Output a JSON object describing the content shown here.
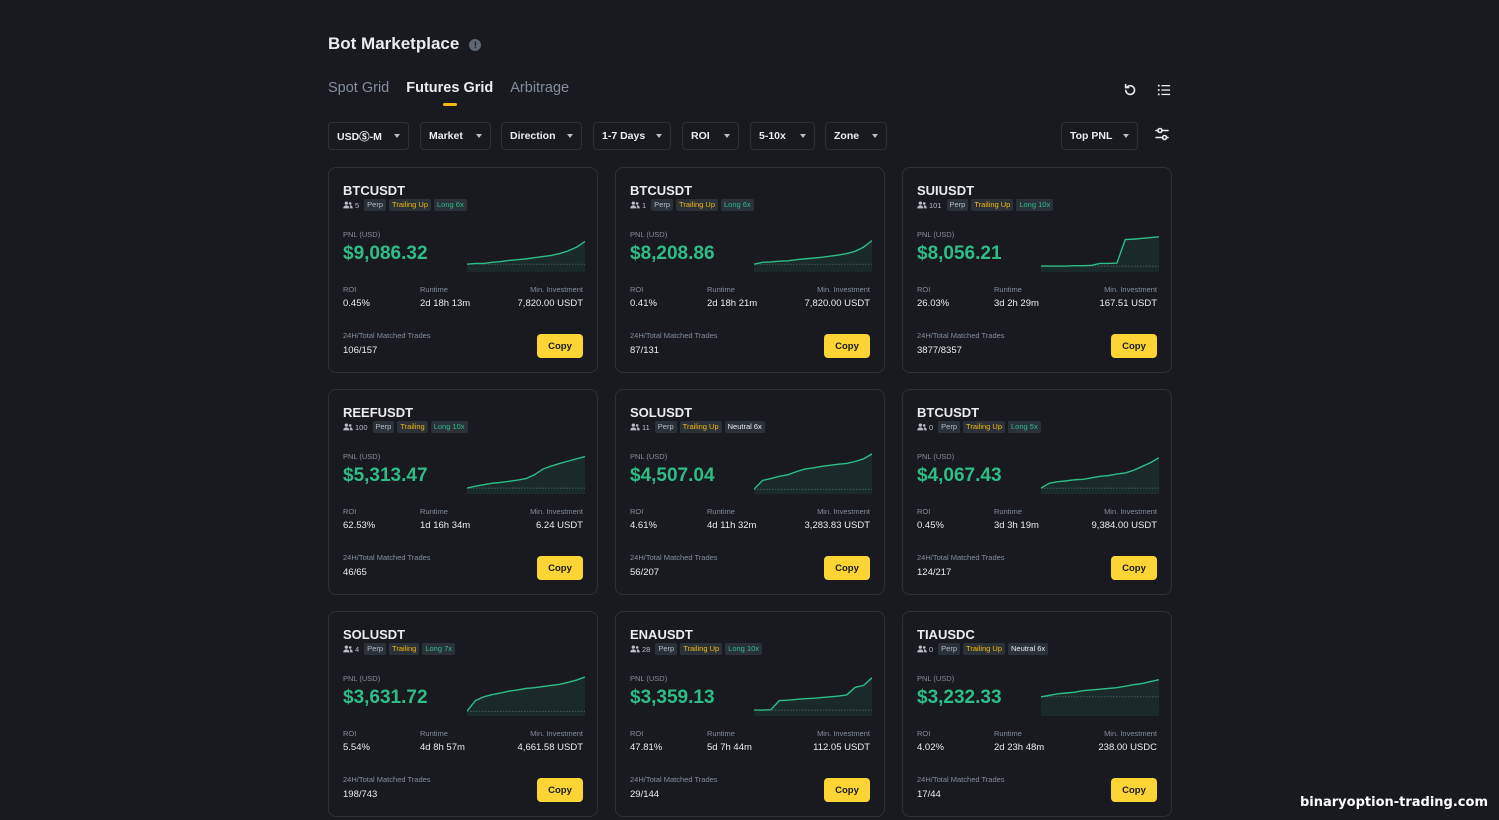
{
  "header": {
    "title": "Bot Marketplace",
    "info_icon": "info-icon"
  },
  "tabs": [
    {
      "label": "Spot Grid",
      "active": false
    },
    {
      "label": "Futures Grid",
      "active": true
    },
    {
      "label": "Arbitrage",
      "active": false
    }
  ],
  "toolbar": {
    "refresh_icon": "refresh-icon",
    "list_icon": "list-view-icon",
    "settings_icon": "sliders-icon"
  },
  "filters": [
    {
      "label": "USDⓈ-M"
    },
    {
      "label": "Market"
    },
    {
      "label": "Direction"
    },
    {
      "label": "1-7 Days"
    },
    {
      "label": "ROI"
    },
    {
      "label": "5-10x"
    },
    {
      "label": "Zone"
    }
  ],
  "sort": {
    "label": "Top PNL"
  },
  "labels": {
    "pnl": "PNL (USD)",
    "roi": "ROI",
    "runtime": "Runtime",
    "min_investment": "Min. Investment",
    "trades": "24H/Total Matched Trades",
    "copy": "Copy"
  },
  "colors": {
    "accent": "#fcd535",
    "positive": "#2ebd85",
    "background": "#181a20",
    "border": "#2b3139"
  },
  "cards": [
    {
      "symbol": "BTCUSDT",
      "users": "5",
      "type": "Perp",
      "mode": "Trailing Up",
      "direction": "Long 6x",
      "direction_kind": "long",
      "pnl": "$9,086.32",
      "roi": "0.45%",
      "runtime": "2d 18h 13m",
      "min_investment": "7,820.00 USDT",
      "trades": "106/157",
      "trend": [
        0.1,
        0.12,
        0.12,
        0.15,
        0.17,
        0.2,
        0.22,
        0.24,
        0.27,
        0.3,
        0.33,
        0.38,
        0.45,
        0.55,
        0.7
      ]
    },
    {
      "symbol": "BTCUSDT",
      "users": "1",
      "type": "Perp",
      "mode": "Trailing Up",
      "direction": "Long 6x",
      "direction_kind": "long",
      "pnl": "$8,208.86",
      "roi": "0.41%",
      "runtime": "2d 18h 21m",
      "min_investment": "7,820.00 USDT",
      "trades": "87/131",
      "trend": [
        0.1,
        0.15,
        0.16,
        0.18,
        0.19,
        0.22,
        0.24,
        0.26,
        0.28,
        0.31,
        0.34,
        0.38,
        0.44,
        0.55,
        0.72
      ]
    },
    {
      "symbol": "SUIUSDT",
      "users": "101",
      "type": "Perp",
      "mode": "Trailing Up",
      "direction": "Long 10x",
      "direction_kind": "long",
      "pnl": "$8,056.21",
      "roi": "26.03%",
      "runtime": "3d 2h 29m",
      "min_investment": "167.51 USDT",
      "trades": "3877/8357",
      "trend": [
        0.05,
        0.05,
        0.05,
        0.05,
        0.06,
        0.06,
        0.07,
        0.12,
        0.12,
        0.13,
        0.75,
        0.76,
        0.78,
        0.8,
        0.82
      ]
    },
    {
      "symbol": "REEFUSDT",
      "users": "100",
      "type": "Perp",
      "mode": "Trailing",
      "direction": "Long 10x",
      "direction_kind": "long",
      "pnl": "$5,313.47",
      "roi": "62.53%",
      "runtime": "1d 16h 34m",
      "min_investment": "6.24 USDT",
      "trades": "46/65",
      "trend": [
        0.05,
        0.1,
        0.14,
        0.18,
        0.2,
        0.23,
        0.26,
        0.3,
        0.4,
        0.55,
        0.63,
        0.7,
        0.76,
        0.82,
        0.88
      ]
    },
    {
      "symbol": "SOLUSDT",
      "users": "11",
      "type": "Perp",
      "mode": "Trailing Up",
      "direction": "Neutral 6x",
      "direction_kind": "neutral",
      "pnl": "$4,507.04",
      "roi": "4.61%",
      "runtime": "4d 11h 32m",
      "min_investment": "3,283.83 USDT",
      "trades": "56/207",
      "trend": [
        0.02,
        0.25,
        0.3,
        0.36,
        0.4,
        0.48,
        0.55,
        0.58,
        0.62,
        0.65,
        0.68,
        0.7,
        0.75,
        0.82,
        0.95
      ]
    },
    {
      "symbol": "BTCUSDT",
      "users": "0",
      "type": "Perp",
      "mode": "Trailing Up",
      "direction": "Long 5x",
      "direction_kind": "long",
      "pnl": "$4,067.43",
      "roi": "0.45%",
      "runtime": "3d 3h 19m",
      "min_investment": "9,384.00 USDT",
      "trades": "124/217",
      "trend": [
        0.05,
        0.18,
        0.22,
        0.24,
        0.27,
        0.28,
        0.32,
        0.36,
        0.38,
        0.42,
        0.45,
        0.52,
        0.62,
        0.72,
        0.85
      ]
    },
    {
      "symbol": "SOLUSDT",
      "users": "4",
      "type": "Perp",
      "mode": "Trailing",
      "direction": "Long 7x",
      "direction_kind": "long",
      "pnl": "$3,631.72",
      "roi": "5.54%",
      "runtime": "4d 8h 57m",
      "min_investment": "4,661.58 USDT",
      "trades": "198/743",
      "trend": [
        0.02,
        0.3,
        0.4,
        0.46,
        0.5,
        0.55,
        0.58,
        0.62,
        0.64,
        0.67,
        0.7,
        0.73,
        0.78,
        0.84,
        0.92
      ]
    },
    {
      "symbol": "ENAUSDT",
      "users": "28",
      "type": "Perp",
      "mode": "Trailing Up",
      "direction": "Long 10x",
      "direction_kind": "long",
      "pnl": "$3,359.13",
      "roi": "47.81%",
      "runtime": "5d 7h 44m",
      "min_investment": "112.05 USDT",
      "trades": "29/144",
      "trend": [
        0.05,
        0.05,
        0.06,
        0.3,
        0.31,
        0.33,
        0.35,
        0.36,
        0.38,
        0.4,
        0.42,
        0.45,
        0.65,
        0.7,
        0.9
      ]
    },
    {
      "symbol": "TIAUSDC",
      "users": "0",
      "type": "Perp",
      "mode": "Trailing Up",
      "direction": "Neutral 6x",
      "direction_kind": "neutral",
      "pnl": "$3,232.33",
      "roi": "4.02%",
      "runtime": "2d 23h 48m",
      "min_investment": "238.00 USDC",
      "trades": "17/44",
      "trend": [
        0.4,
        0.44,
        0.48,
        0.5,
        0.52,
        0.56,
        0.58,
        0.6,
        0.62,
        0.64,
        0.68,
        0.72,
        0.75,
        0.8,
        0.85
      ]
    }
  ],
  "watermark": "binaryoption-trading.com"
}
